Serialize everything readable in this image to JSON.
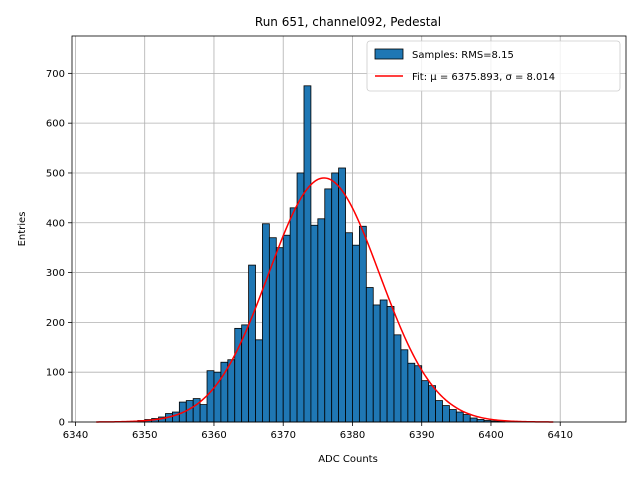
{
  "chart_data": {
    "type": "bar",
    "title": "Run 651, channel092, Pedestal",
    "xlabel": "ADC Counts",
    "ylabel": "Entries",
    "xlim": [
      6339.5,
      6419.5
    ],
    "ylim": [
      0,
      775
    ],
    "xticks": [
      6340,
      6350,
      6360,
      6370,
      6380,
      6390,
      6400,
      6410
    ],
    "yticks": [
      0,
      100,
      200,
      300,
      400,
      500,
      600,
      700
    ],
    "grid": true,
    "legend_position": "top-right",
    "bin_width": 1,
    "bin_start": 6349,
    "values": [
      3,
      5,
      7,
      10,
      17,
      20,
      40,
      43,
      47,
      35,
      103,
      100,
      120,
      125,
      188,
      195,
      315,
      165,
      398,
      370,
      350,
      375,
      430,
      500,
      675,
      395,
      408,
      468,
      500,
      510,
      380,
      355,
      393,
      270,
      235,
      245,
      232,
      175,
      145,
      118,
      113,
      83,
      73,
      43,
      33,
      25,
      20,
      15,
      8,
      5,
      3,
      2,
      2
    ],
    "series": [
      {
        "name": "Samples: RMS=8.15",
        "kind": "histogram"
      },
      {
        "name": "Fit: μ = 6375.893, σ = 8.014",
        "kind": "gaussian",
        "mu": 6375.893,
        "sigma": 8.014,
        "amplitude": 490,
        "range": [
          6343,
          6409
        ]
      }
    ]
  }
}
